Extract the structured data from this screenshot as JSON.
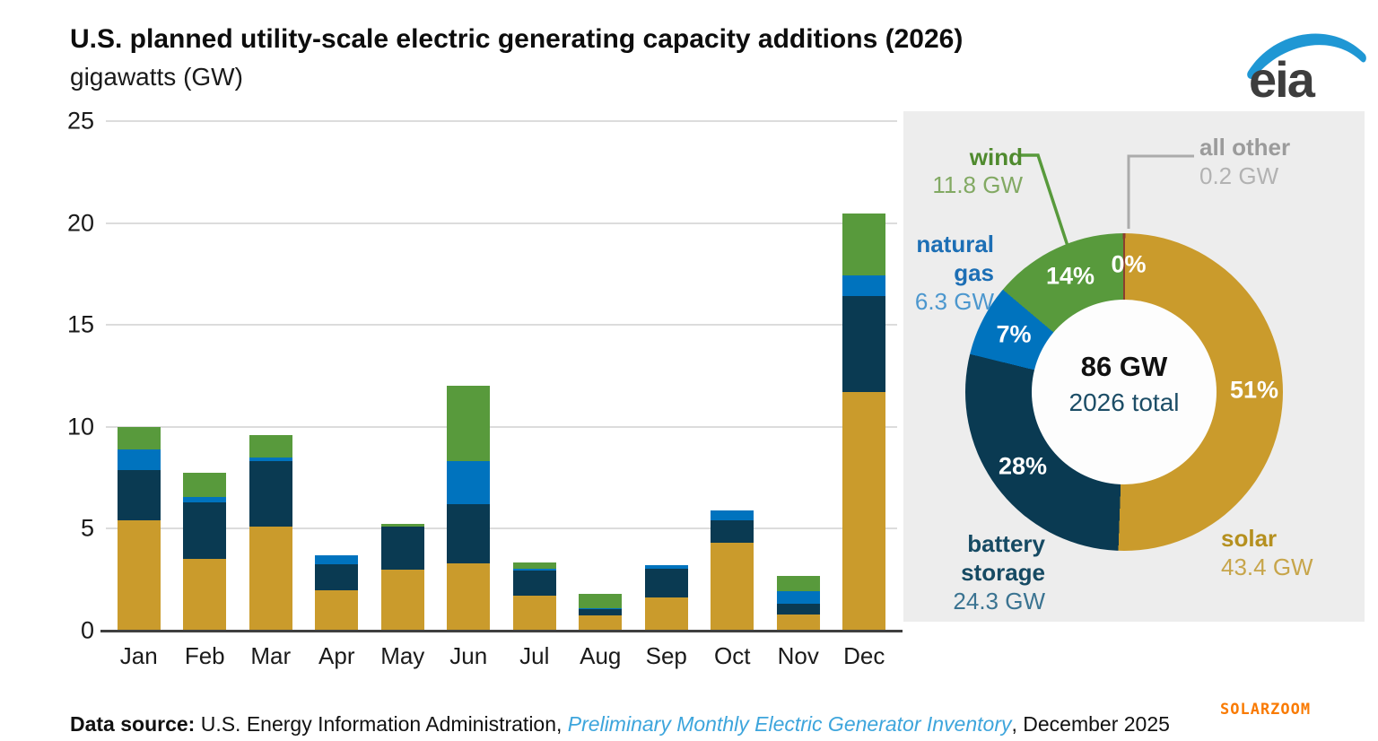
{
  "header": {
    "title": "U.S. planned utility-scale electric generating capacity additions (2026)",
    "subtitle": "gigawatts (GW)",
    "logo_text": "eia"
  },
  "chart_data": [
    {
      "type": "bar",
      "stacked": true,
      "title": "U.S. planned utility-scale electric generating capacity additions (2026)",
      "ylabel": "gigawatts (GW)",
      "xlabel": "",
      "ylim": [
        0,
        25
      ],
      "yticks": [
        0,
        5,
        10,
        15,
        20,
        25
      ],
      "grid": true,
      "categories": [
        "Jan",
        "Feb",
        "Mar",
        "Apr",
        "May",
        "Jun",
        "Jul",
        "Aug",
        "Sep",
        "Oct",
        "Nov",
        "Dec"
      ],
      "series": [
        {
          "name": "solar",
          "color": "#CA9B2C",
          "values": [
            5.4,
            3.5,
            5.1,
            2.0,
            3.0,
            3.3,
            1.7,
            0.75,
            1.65,
            4.3,
            0.8,
            11.7
          ]
        },
        {
          "name": "battery storage",
          "color": "#0A3A52",
          "values": [
            2.5,
            2.8,
            3.2,
            1.25,
            2.1,
            2.9,
            1.25,
            0.3,
            1.4,
            1.1,
            0.5,
            4.7
          ]
        },
        {
          "name": "natural gas",
          "color": "#0073BE",
          "values": [
            1.0,
            0.25,
            0.2,
            0.45,
            0.0,
            2.1,
            0.1,
            0.05,
            0.15,
            0.5,
            0.65,
            1.05
          ]
        },
        {
          "name": "wind",
          "color": "#589A3C",
          "values": [
            1.1,
            1.2,
            1.1,
            0.0,
            0.15,
            3.7,
            0.3,
            0.7,
            0.0,
            0.0,
            0.75,
            3.0
          ]
        }
      ]
    },
    {
      "type": "pie",
      "donut": true,
      "center_value": "86 GW",
      "center_label": "2026 total",
      "slices": [
        {
          "name": "all other",
          "value_gw": 0.2,
          "value_label": "0.2 GW",
          "percent": "0%",
          "color": "#8B3E2F"
        },
        {
          "name": "solar",
          "value_gw": 43.4,
          "value_label": "43.4 GW",
          "percent": "51%",
          "color": "#CA9B2C"
        },
        {
          "name": "battery storage",
          "value_gw": 24.3,
          "value_label": "24.3 GW",
          "percent": "28%",
          "color": "#0A3A52"
        },
        {
          "name": "natural gas",
          "value_gw": 6.3,
          "value_label": "6.3 GW",
          "percent": "7%",
          "color": "#0073BE"
        },
        {
          "name": "wind",
          "value_gw": 11.8,
          "value_label": "11.8 GW",
          "percent": "14%",
          "color": "#589A3C"
        }
      ]
    }
  ],
  "donut_callouts": {
    "wind_name": "wind",
    "wind_value": "11.8 GW",
    "all_other_name": "all other",
    "all_other_value": "0.2 GW",
    "natural_gas_line1": "natural",
    "natural_gas_line2": "gas",
    "natural_gas_value": "6.3 GW",
    "battery_line1": "battery",
    "battery_line2": "storage",
    "battery_value": "24.3 GW",
    "solar_name": "solar",
    "solar_value": "43.4 GW"
  },
  "footer": {
    "prefix": "Data source:",
    "body": " U.S. Energy Information Administration, ",
    "italic": "Preliminary Monthly Electric Generator Inventory",
    "suffix": ", December 2025"
  },
  "watermark": "SOLARZOOM"
}
